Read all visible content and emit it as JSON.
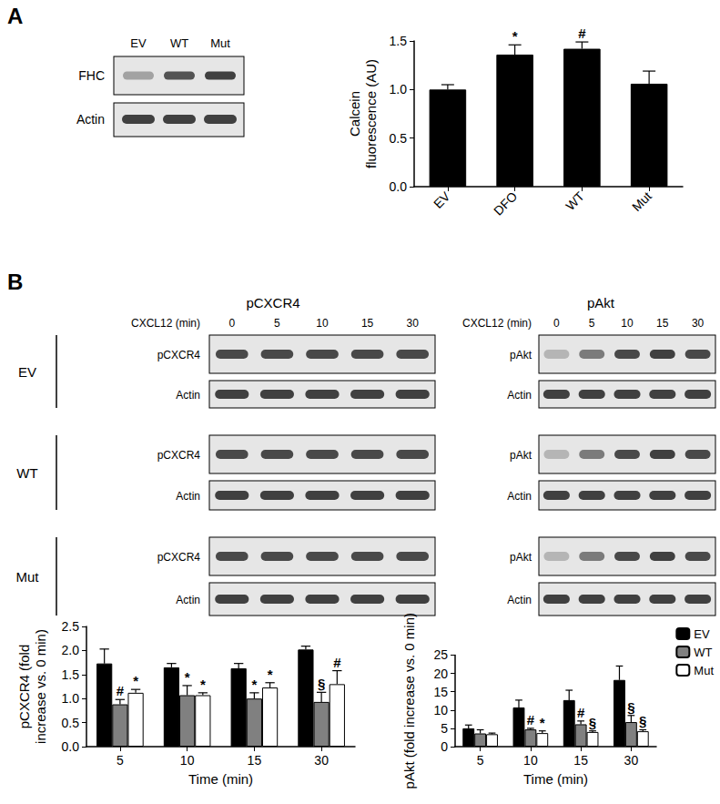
{
  "panel_labels": [
    "A",
    "B"
  ],
  "blot_A": {
    "lanes": [
      "EV",
      "WT",
      "Mut"
    ],
    "rows": [
      "FHC",
      "Actin"
    ]
  },
  "blot_B": {
    "columns": [
      {
        "title": "pCXCR4",
        "row_labels": [
          "pCXCR4",
          "Actin"
        ]
      },
      {
        "title": "pAkt",
        "row_labels": [
          "pAkt",
          "Actin"
        ]
      }
    ],
    "time_label": "CXCL12 (min)",
    "times": [
      0,
      5,
      10,
      15,
      30
    ],
    "groups": [
      "EV",
      "WT",
      "Mut"
    ]
  },
  "chart_data": [
    {
      "type": "bar",
      "categories": [
        "EV",
        "DFO",
        "WT",
        "Mut"
      ],
      "values": [
        1.0,
        1.36,
        1.42,
        1.06
      ],
      "errors": [
        0.05,
        0.1,
        0.07,
        0.13
      ],
      "annotations": [
        null,
        "*",
        "#",
        null
      ],
      "color": "#000000",
      "ylabel": "Calcein\nfluorescence (AU)",
      "ylim": [
        0,
        1.5
      ],
      "yticks": [
        {
          "value": 0,
          "label": "0.0"
        },
        {
          "value": 0.5,
          "label": "0.5"
        },
        {
          "value": 1,
          "label": "1.0"
        },
        {
          "value": 1.5,
          "label": "1.5"
        }
      ],
      "grid": false
    },
    {
      "type": "bar",
      "categories": [
        "5",
        "10",
        "15",
        "30"
      ],
      "xlabel": "Time (min)",
      "ylabel": "pCXCR4 (fold\nincrease vs. 0 min)",
      "series": [
        {
          "name": "EV",
          "color": "#000000",
          "values": [
            1.73,
            1.65,
            1.63,
            2.02
          ],
          "errors": [
            0.3,
            0.08,
            0.1,
            0.07
          ]
        },
        {
          "name": "WT",
          "color": "#808080",
          "values": [
            0.88,
            1.07,
            1.0,
            0.93
          ],
          "errors": [
            0.1,
            0.2,
            0.12,
            0.2
          ],
          "annotations": [
            "#",
            "*",
            "*",
            "§"
          ]
        },
        {
          "name": "Mut",
          "color": "#ffffff",
          "values": [
            1.12,
            1.07,
            1.23,
            1.3
          ],
          "errors": [
            0.07,
            0.05,
            0.1,
            0.28
          ],
          "annotations": [
            "*",
            "*",
            "*",
            "#"
          ]
        }
      ],
      "ylim": [
        0,
        2.5
      ],
      "yticks": [
        {
          "value": 0,
          "label": "0.0"
        },
        {
          "value": 0.5,
          "label": "0.5"
        },
        {
          "value": 1,
          "label": "1.0"
        },
        {
          "value": 1.5,
          "label": "1.5"
        },
        {
          "value": 2,
          "label": "2.0"
        },
        {
          "value": 2.5,
          "label": "2.5"
        }
      ],
      "grid": false
    },
    {
      "type": "bar",
      "categories": [
        "5",
        "10",
        "15",
        "30"
      ],
      "xlabel": "Time (min)",
      "ylabel": "pAkt (fold increase vs. 0 min)",
      "series": [
        {
          "name": "EV",
          "color": "#000000",
          "values": [
            5.0,
            10.7,
            12.7,
            18.2
          ],
          "errors": [
            0.9,
            2.0,
            2.7,
            3.8
          ]
        },
        {
          "name": "WT",
          "color": "#808080",
          "values": [
            3.6,
            4.7,
            6.1,
            6.7
          ],
          "errors": [
            1.0,
            0.3,
            0.9,
            1.8
          ],
          "annotations": [
            null,
            "#",
            "#",
            "§"
          ]
        },
        {
          "name": "Mut",
          "color": "#ffffff",
          "values": [
            3.4,
            3.7,
            4.0,
            4.2
          ],
          "errors": [
            0.3,
            0.6,
            0.3,
            0.4
          ],
          "annotations": [
            null,
            "*",
            "§",
            "§"
          ]
        }
      ],
      "ylim": [
        0,
        25
      ],
      "yticks": [
        0,
        5,
        10,
        15,
        20,
        25
      ],
      "legend": "upper right",
      "grid": false
    }
  ]
}
